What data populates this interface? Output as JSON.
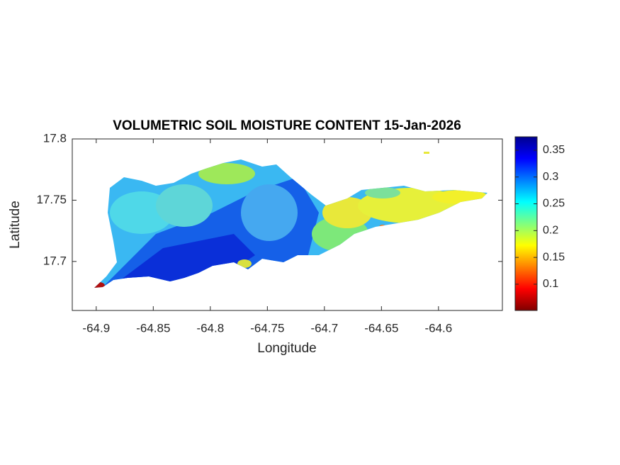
{
  "chart_data": {
    "type": "map",
    "title": "VOLUMETRIC SOIL MOISTURE CONTENT 15-Jan-2026",
    "x_label": "Longitude",
    "y_label": "Latitude",
    "xlim": [
      -64.921,
      -64.544
    ],
    "xticks": [
      -64.9,
      -64.85,
      -64.8,
      -64.75,
      -64.7,
      -64.65,
      -64.6
    ],
    "ylim": [
      17.66,
      17.8
    ],
    "yticks": [
      17.7,
      17.75,
      17.8
    ],
    "colormap": "jet",
    "clim": [
      0.051,
      0.375
    ],
    "colorbar_ticks": [
      0.1,
      0.15,
      0.2,
      0.25,
      0.3,
      0.35
    ]
  }
}
